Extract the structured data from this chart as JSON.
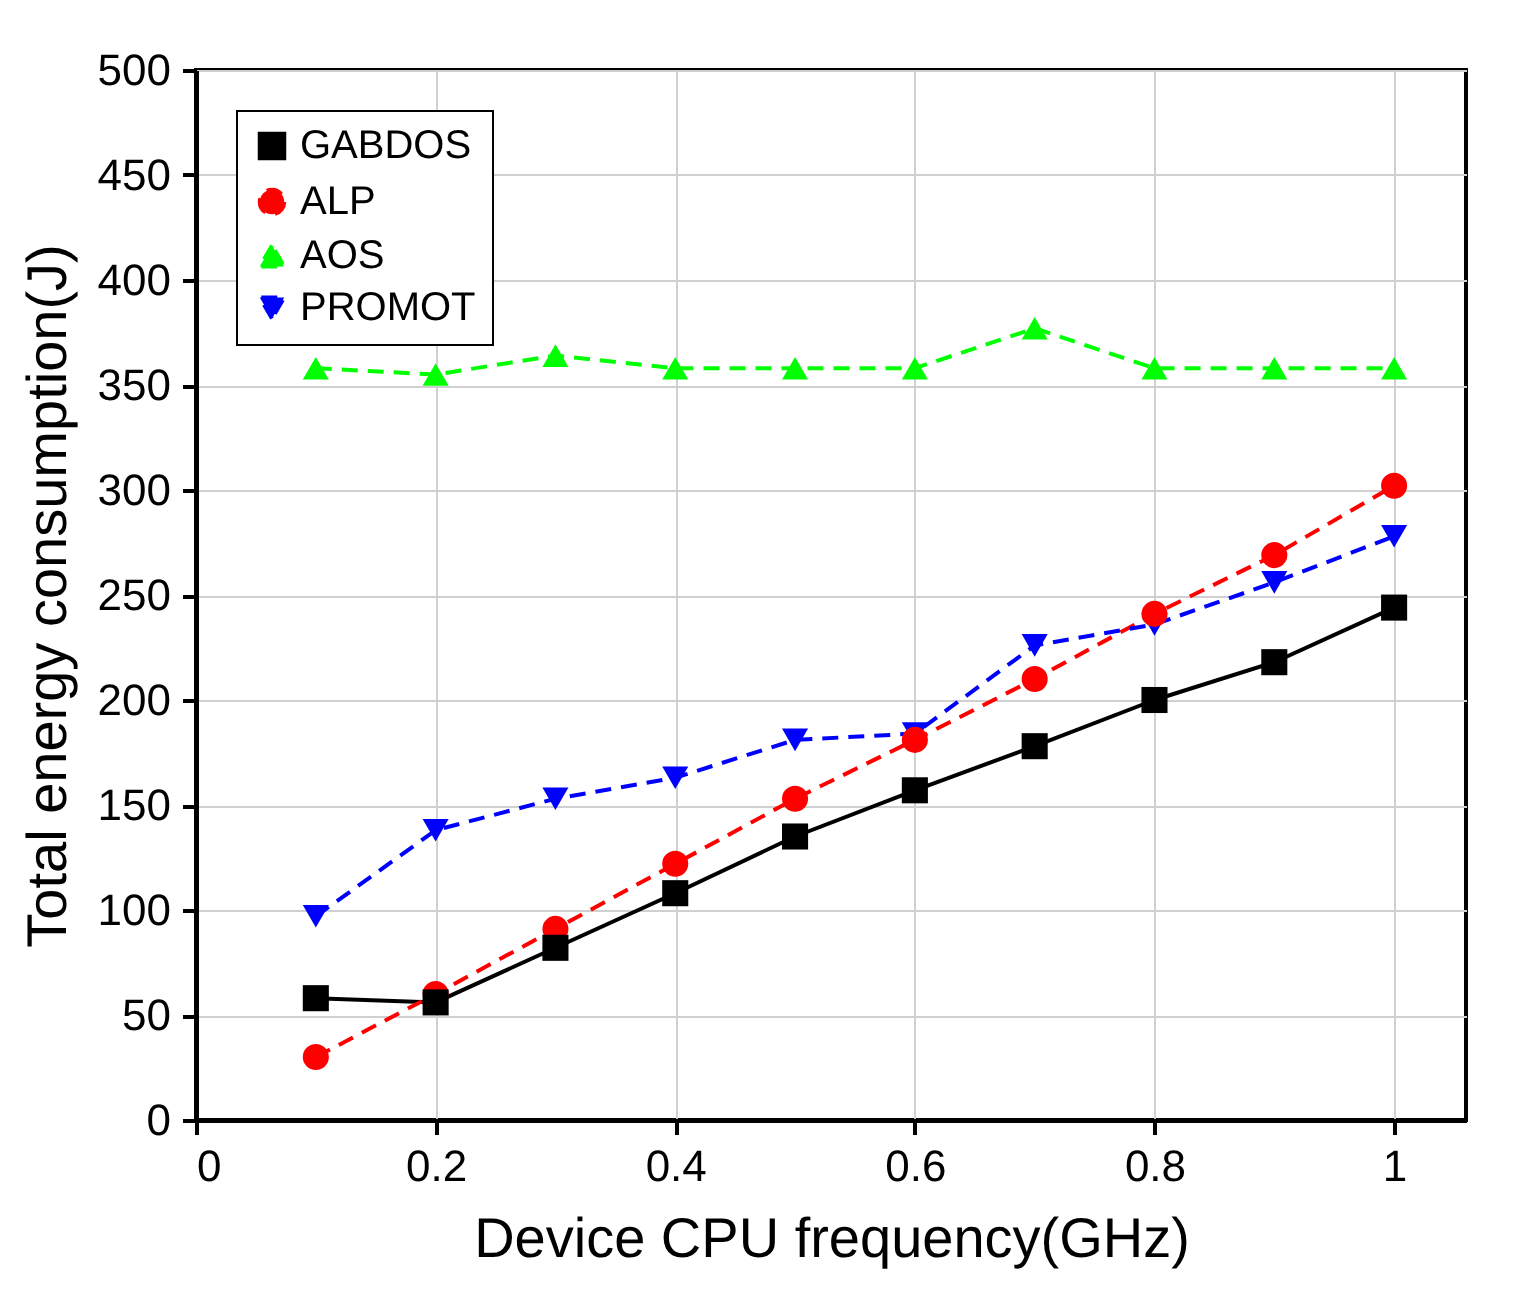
{
  "chart_data": {
    "type": "line",
    "xlabel": "Device CPU frequency(GHz)",
    "ylabel": "Total energy consumption(J)",
    "x": [
      0.1,
      0.2,
      0.3,
      0.4,
      0.5,
      0.6,
      0.7,
      0.8,
      0.9,
      1
    ],
    "series": [
      {
        "name": "GABDOS",
        "color": "#000000",
        "marker": "square",
        "line_style": "solid",
        "values": [
          58,
          56,
          82,
          108,
          135,
          157,
          178,
          200,
          218,
          244
        ]
      },
      {
        "name": "ALP",
        "color": "#ff0000",
        "marker": "circle",
        "line_style": "dashed",
        "values": [
          30,
          60,
          91,
          122,
          153,
          181,
          210,
          241,
          269,
          302
        ]
      },
      {
        "name": "AOS",
        "color": "#00ff00",
        "marker": "triangle",
        "line_style": "dashed",
        "values": [
          358,
          355,
          364,
          358,
          358,
          358,
          377,
          358,
          358,
          358
        ]
      },
      {
        "name": "PROMOT",
        "color": "#0000ff",
        "marker": "triangle-down",
        "line_style": "dashed",
        "values": [
          97,
          138,
          153,
          163,
          181,
          184,
          226,
          236,
          256,
          278
        ]
      }
    ],
    "xlim": [
      0,
      1.06
    ],
    "xticks": [
      0,
      0.2,
      0.4,
      0.6,
      0.8,
      1
    ],
    "ylim": [
      0,
      500
    ],
    "yticks": [
      0,
      50,
      100,
      150,
      200,
      250,
      300,
      350,
      400,
      450,
      500
    ],
    "grid": true,
    "legend": "top left"
  }
}
